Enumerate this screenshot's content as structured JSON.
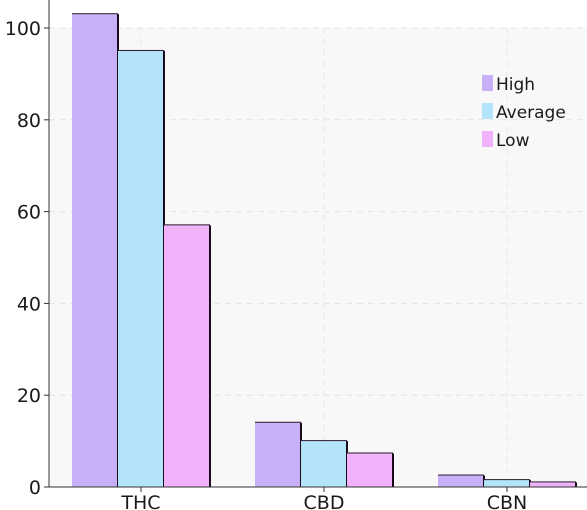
{
  "chart_data": {
    "type": "bar",
    "title": "",
    "xlabel": "",
    "ylabel": "",
    "categories": [
      "THC",
      "CBD",
      "CBN"
    ],
    "series": [
      {
        "name": "High",
        "values": [
          103,
          14,
          2.5
        ],
        "color": "#c8b0f8"
      },
      {
        "name": "Average",
        "values": [
          95,
          10,
          1.5
        ],
        "color": "#b4e4fa"
      },
      {
        "name": "Low",
        "values": [
          57,
          7.3,
          1
        ],
        "color": "#f0b2fa"
      }
    ],
    "ylim": [
      0,
      100
    ],
    "yticks": [
      0,
      20,
      40,
      60,
      80,
      100
    ],
    "grid": true,
    "legend_position": "top-right"
  }
}
